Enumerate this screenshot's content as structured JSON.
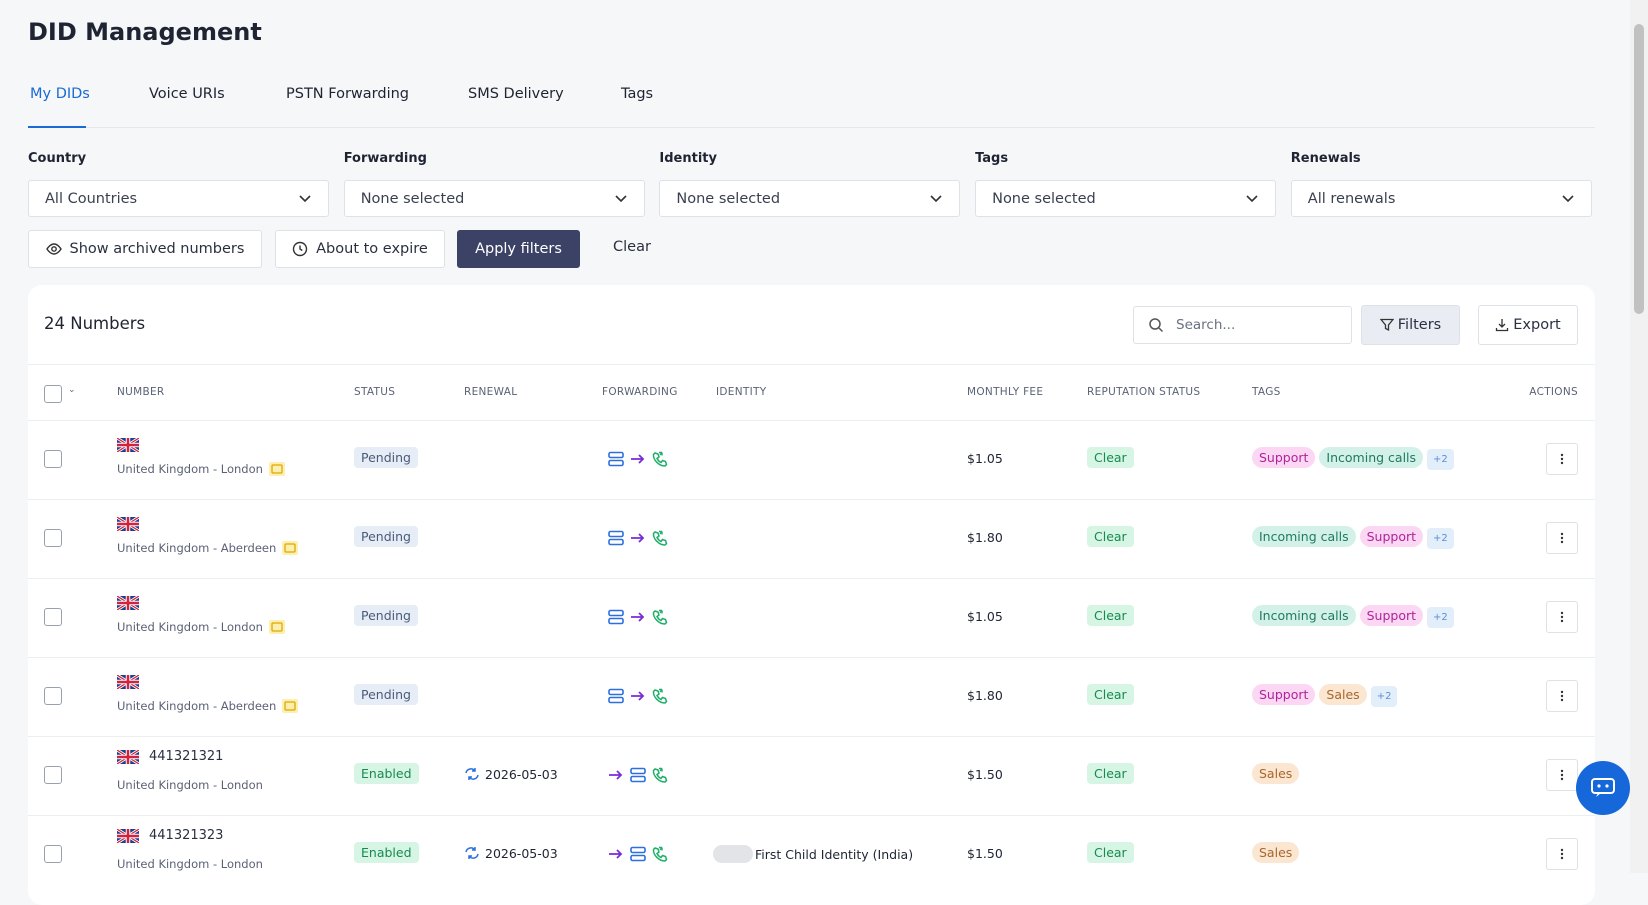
{
  "header": {
    "title": "DID Management"
  },
  "tabs": [
    "My DIDs",
    "Voice URIs",
    "PSTN Forwarding",
    "SMS Delivery",
    "Tags"
  ],
  "filters": [
    {
      "label": "Country",
      "value": "All Countries"
    },
    {
      "label": "Forwarding",
      "value": "None selected"
    },
    {
      "label": "Identity",
      "value": "None selected"
    },
    {
      "label": "Tags",
      "value": "None selected"
    },
    {
      "label": "Renewals",
      "value": "All renewals"
    }
  ],
  "buttons": {
    "show_archived": "Show archived numbers",
    "about_to_expire": "About to expire",
    "apply": "Apply filters",
    "clear": "Clear"
  },
  "table": {
    "count": "24 Numbers",
    "search_placeholder": "Search...",
    "filters": "Filters",
    "export": "Export",
    "columns": [
      "NUMBER",
      "STATUS",
      "RENEWAL",
      "FORWARDING",
      "IDENTITY",
      "MONTHLY FEE",
      "REPUTATION STATUS",
      "TAGS",
      "ACTIONS"
    ],
    "rows": [
      {
        "number": null,
        "location": "United Kingdom - London",
        "status": {
          "label": "Pending",
          "color": "#4a5b78",
          "background": "#e6edf6"
        },
        "renewal": null,
        "identity": null,
        "fee": "$1.05",
        "reputation": "Clear",
        "tags": [
          {
            "label": "Support",
            "color": "#b0239a",
            "background": "#fbd7f3"
          },
          {
            "label": "Incoming calls",
            "color": "#1f7a63",
            "background": "#d3f1e8"
          },
          {
            "label": "+2",
            "color": "#5b8fd6",
            "background": "#e3eefb"
          }
        ]
      },
      {
        "number": null,
        "location": "United Kingdom - Aberdeen",
        "status": {
          "label": "Pending",
          "color": "#4a5b78",
          "background": "#e6edf6"
        },
        "renewal": null,
        "identity": null,
        "fee": "$1.80",
        "reputation": "Clear",
        "tags": [
          {
            "label": "Incoming calls",
            "color": "#1f7a63",
            "background": "#d3f1e8"
          },
          {
            "label": "Support",
            "color": "#b0239a",
            "background": "#fbd7f3"
          },
          {
            "label": "+2",
            "color": "#5b8fd6",
            "background": "#e3eefb"
          }
        ]
      },
      {
        "number": null,
        "location": "United Kingdom - London",
        "status": {
          "label": "Pending",
          "color": "#4a5b78",
          "background": "#e6edf6"
        },
        "renewal": null,
        "identity": null,
        "fee": "$1.05",
        "reputation": "Clear",
        "tags": [
          {
            "label": "Incoming calls",
            "color": "#1f7a63",
            "background": "#d3f1e8"
          },
          {
            "label": "Support",
            "color": "#b0239a",
            "background": "#fbd7f3"
          },
          {
            "label": "+2",
            "color": "#5b8fd6",
            "background": "#e3eefb"
          }
        ]
      },
      {
        "number": null,
        "location": "United Kingdom - Aberdeen",
        "status": {
          "label": "Pending",
          "color": "#4a5b78",
          "background": "#e6edf6"
        },
        "renewal": null,
        "identity": null,
        "fee": "$1.80",
        "reputation": "Clear",
        "tags": [
          {
            "label": "Support",
            "color": "#b0239a",
            "background": "#fbd7f3"
          },
          {
            "label": "Sales",
            "color": "#a8662a",
            "background": "#fbe6d2"
          },
          {
            "label": "+2",
            "color": "#5b8fd6",
            "background": "#e3eefb"
          }
        ]
      },
      {
        "number": "441321321",
        "location": "United Kingdom - London",
        "status": {
          "label": "Enabled",
          "color": "#178a4f",
          "background": "#d7f5e5"
        },
        "renewal": "2026-05-03",
        "identity": null,
        "fee": "$1.50",
        "reputation": "Clear",
        "tags": [
          {
            "label": "Sales",
            "color": "#a8662a",
            "background": "#fbe6d2"
          }
        ]
      },
      {
        "number": "441321323",
        "location": "United Kingdom - London",
        "status": {
          "label": "Enabled",
          "color": "#178a4f",
          "background": "#d7f5e5"
        },
        "renewal": "2026-05-03",
        "identity": "First Child Identity (India)",
        "fee": "$1.50",
        "reputation": "Clear",
        "tags": [
          {
            "label": "Sales",
            "color": "#a8662a",
            "background": "#fbe6d2"
          }
        ]
      }
    ]
  }
}
